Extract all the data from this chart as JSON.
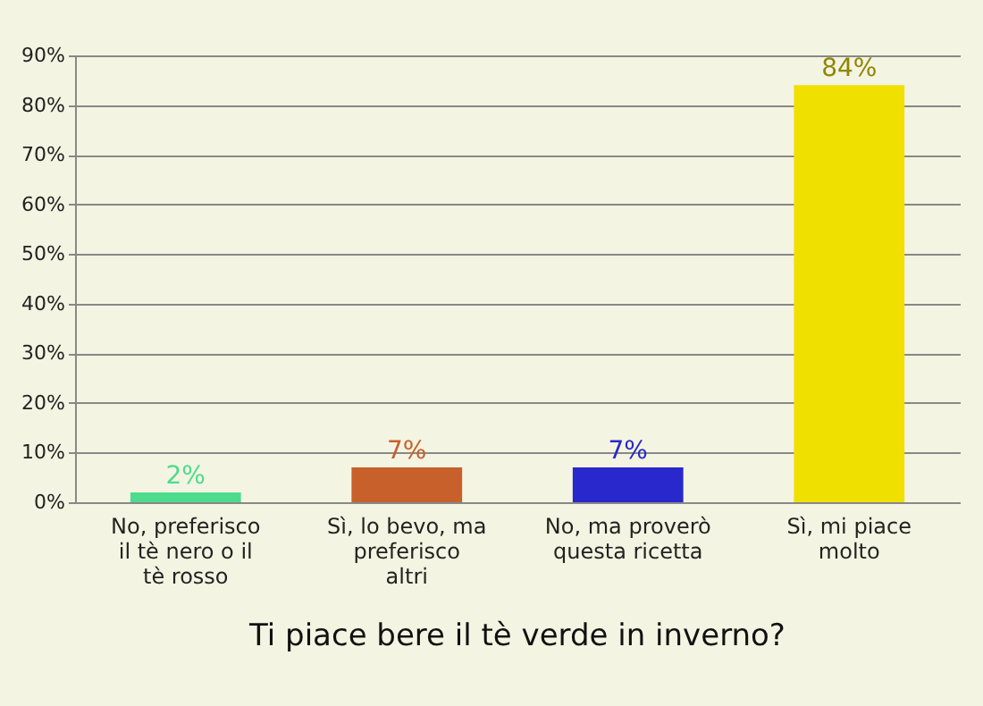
{
  "chart_data": {
    "type": "bar",
    "title": "Ti piace bere il tè verde in inverno?",
    "categories": [
      "No, preferisco il tè nero o il tè rosso",
      "Sì, lo bevo, ma preferisco altri",
      "No, ma proverò questa ricetta",
      "Sì, mi piace molto"
    ],
    "values": [
      2,
      7,
      7,
      84
    ],
    "colors": [
      "#4cdc8c",
      "#c8602c",
      "#2828cc",
      "#f0e000"
    ],
    "value_labels": [
      "2%",
      "7%",
      "7%",
      "84%"
    ],
    "ylim": [
      0,
      90
    ],
    "yticks": [
      {
        "value": 0,
        "label": "0%"
      },
      {
        "value": 10,
        "label": "10%"
      },
      {
        "value": 20,
        "label": "20%"
      },
      {
        "value": 30,
        "label": "30%"
      },
      {
        "value": 40,
        "label": "40%"
      },
      {
        "value": 50,
        "label": "50%"
      },
      {
        "value": 60,
        "label": "60%"
      },
      {
        "value": 70,
        "label": "70%"
      },
      {
        "value": 80,
        "label": "80%"
      },
      {
        "value": 90,
        "label": "90%"
      }
    ],
    "grid": "y"
  }
}
